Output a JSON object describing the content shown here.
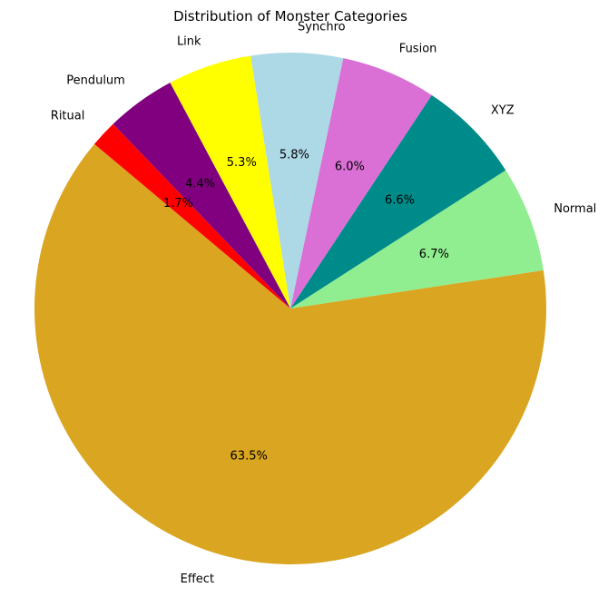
{
  "chart_data": {
    "type": "pie",
    "title": "Distribution of Monster Categories",
    "start_angle_deg": 140,
    "direction": "counterclockwise",
    "legend": "none",
    "slices": [
      {
        "label": "Effect",
        "value": 63.5,
        "pct_label": "63.5%",
        "color": "#DAA520"
      },
      {
        "label": "Normal",
        "value": 6.7,
        "pct_label": "6.7%",
        "color": "#90EE90"
      },
      {
        "label": "XYZ",
        "value": 6.6,
        "pct_label": "6.6%",
        "color": "#008B8B"
      },
      {
        "label": "Fusion",
        "value": 6.0,
        "pct_label": "6.0%",
        "color": "#DA70D6"
      },
      {
        "label": "Synchro",
        "value": 5.8,
        "pct_label": "5.8%",
        "color": "#ADD8E6"
      },
      {
        "label": "Link",
        "value": 5.3,
        "pct_label": "5.3%",
        "color": "#FFFF00"
      },
      {
        "label": "Pendulum",
        "value": 4.4,
        "pct_label": "4.4%",
        "color": "#800080"
      },
      {
        "label": "Ritual",
        "value": 1.7,
        "pct_label": "1.7%",
        "color": "#FF0000"
      }
    ]
  }
}
